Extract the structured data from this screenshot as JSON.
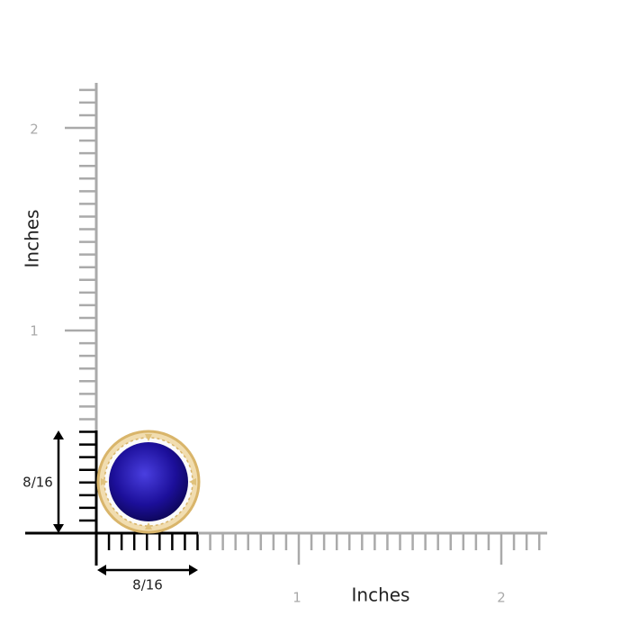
{
  "y_axis": {
    "label": "Inches",
    "ticks": [
      "1",
      "2"
    ]
  },
  "x_axis": {
    "label": "Inches",
    "ticks": [
      "1",
      "2"
    ]
  },
  "dimensions": {
    "width": "8/16",
    "height": "8/16"
  }
}
